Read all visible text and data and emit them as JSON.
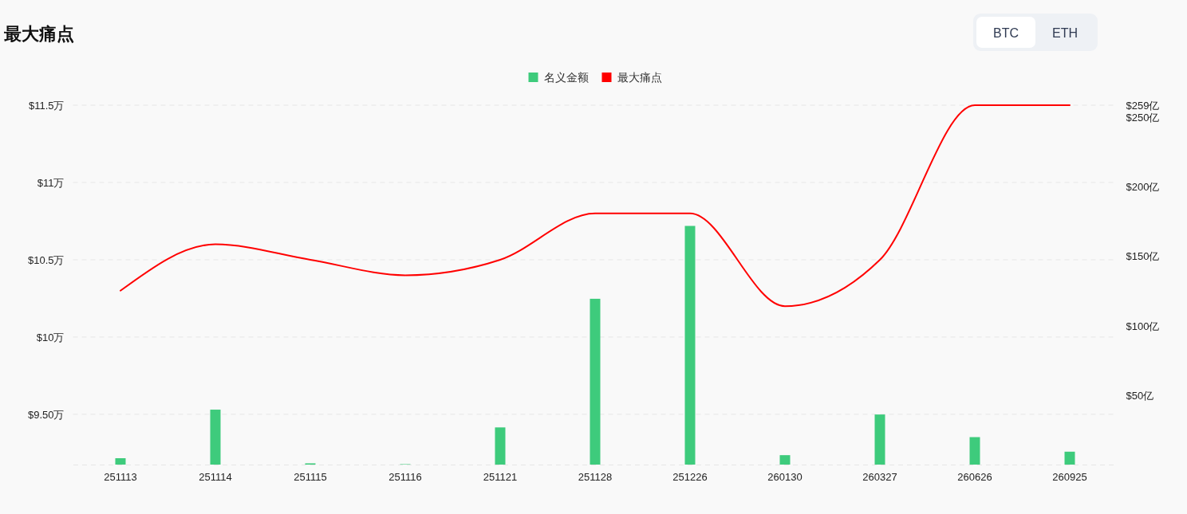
{
  "chart_data": {
    "type": "bar",
    "title": "最大痛点",
    "categories": [
      "251113",
      "251114",
      "251115",
      "251116",
      "251121",
      "251128",
      "251226",
      "260130",
      "260327",
      "260626",
      "260925"
    ],
    "series": [
      {
        "name": "名义金额",
        "axis": "y2",
        "color": "#3ecb7c",
        "values": [
          4.6,
          39.6,
          0.9,
          0.3,
          26.8,
          119.5,
          172,
          6.8,
          36.1,
          19.8,
          9.3
        ]
      },
      {
        "name": "最大痛点",
        "type": "line",
        "color": "#ff0000",
        "values": [
          10.3,
          10.6,
          10.5,
          10.4,
          10.5,
          10.8,
          10.8,
          10.2,
          10.5,
          11.5,
          11.5
        ]
      }
    ],
    "ylim": [
      9.175,
      11.5
    ],
    "yticks": [
      {
        "value": 9.5,
        "label": "$9.50万"
      },
      {
        "value": 10,
        "label": "$10万"
      },
      {
        "value": 10.5,
        "label": "$10.5万"
      },
      {
        "value": 11,
        "label": "$11万"
      },
      {
        "value": 11.5,
        "label": "$11.5万"
      }
    ],
    "y2lim": [
      0,
      259
    ],
    "y2ticks": [
      {
        "value": 50,
        "label": "$50亿"
      },
      {
        "value": 100,
        "label": "$100亿"
      },
      {
        "value": 150,
        "label": "$150亿"
      },
      {
        "value": 200,
        "label": "$200亿"
      },
      {
        "value": 250,
        "label": "$250亿"
      },
      {
        "value": 259,
        "label": "$259亿"
      }
    ],
    "grid": "y",
    "legend": "top",
    "annotations": [
      "BTC",
      "ETH"
    ]
  }
}
